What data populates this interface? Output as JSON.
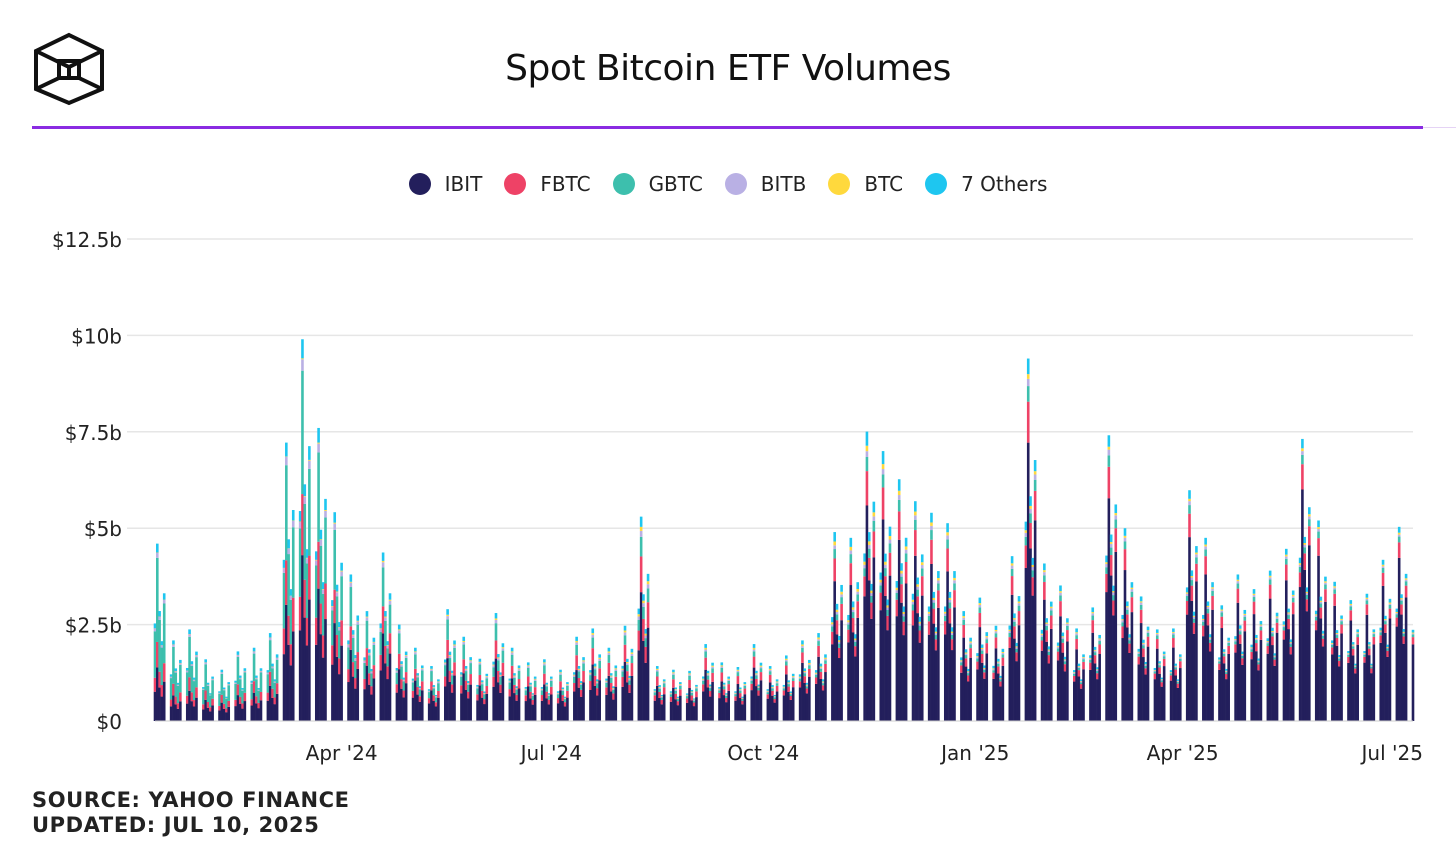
{
  "header": {
    "title": "Spot Bitcoin ETF Volumes"
  },
  "legend": [
    {
      "label": "IBIT",
      "color": "#231f5c"
    },
    {
      "label": "FBTC",
      "color": "#ee4266"
    },
    {
      "label": "GBTC",
      "color": "#3dbfad"
    },
    {
      "label": "BITB",
      "color": "#b9b0e4"
    },
    {
      "label": "BTC",
      "color": "#ffd93d"
    },
    {
      "label": "7 Others",
      "color": "#1ec6f0"
    }
  ],
  "footer": {
    "source": "SOURCE: YAHOO FINANCE",
    "updated": "UPDATED: JUL 10, 2025"
  },
  "chart_data": {
    "type": "bar",
    "stacked": true,
    "title": "Spot Bitcoin ETF Volumes",
    "xlabel": "",
    "ylabel": "",
    "ylim": [
      0,
      12.5
    ],
    "unit": "$b",
    "y_ticks": [
      "$0",
      "$2.5b",
      "$5b",
      "$7.5b",
      "$10b",
      "$12.5b"
    ],
    "y_tick_values": [
      0,
      2.5,
      5,
      7.5,
      10,
      12.5
    ],
    "x_ticks": [
      "Apr '24",
      "Jul '24",
      "Oct '24",
      "Jan '25",
      "Apr '25",
      "Jul '25"
    ],
    "x_tick_dates": [
      "2024-04-01",
      "2024-07-01",
      "2024-10-01",
      "2025-01-01",
      "2025-04-01",
      "2025-07-01"
    ],
    "x_range": [
      "2024-01-11",
      "2025-07-10"
    ],
    "grid": true,
    "legend_position": "top",
    "series_names": [
      "IBIT",
      "FBTC",
      "GBTC",
      "BITB",
      "BTC",
      "7 Others"
    ],
    "series_colors": [
      "#231f5c",
      "#ee4266",
      "#3dbfad",
      "#b9b0e4",
      "#ffd93d",
      "#1ec6f0"
    ],
    "weekly_total_volume": [
      [
        "2024-01-11",
        4.6
      ],
      [
        "2024-01-18",
        2.2
      ],
      [
        "2024-01-25",
        2.5
      ],
      [
        "2024-02-01",
        1.6
      ],
      [
        "2024-02-08",
        1.4
      ],
      [
        "2024-02-15",
        1.9
      ],
      [
        "2024-02-22",
        1.9
      ],
      [
        "2024-02-29",
        2.4
      ],
      [
        "2024-03-07",
        7.6
      ],
      [
        "2024-03-14",
        9.9
      ],
      [
        "2024-03-21",
        8.0
      ],
      [
        "2024-03-28",
        5.7
      ],
      [
        "2024-04-04",
        3.8
      ],
      [
        "2024-04-11",
        3.0
      ],
      [
        "2024-04-18",
        4.6
      ],
      [
        "2024-04-25",
        2.5
      ],
      [
        "2024-05-02",
        2.0
      ],
      [
        "2024-05-09",
        1.5
      ],
      [
        "2024-05-16",
        2.9
      ],
      [
        "2024-05-23",
        2.3
      ],
      [
        "2024-05-30",
        1.7
      ],
      [
        "2024-06-06",
        2.8
      ],
      [
        "2024-06-13",
        2.0
      ],
      [
        "2024-06-20",
        1.6
      ],
      [
        "2024-06-27",
        1.6
      ],
      [
        "2024-07-04",
        1.4
      ],
      [
        "2024-07-11",
        2.3
      ],
      [
        "2024-07-18",
        2.4
      ],
      [
        "2024-07-25",
        2.0
      ],
      [
        "2024-08-01",
        2.6
      ],
      [
        "2024-08-08",
        5.3
      ],
      [
        "2024-08-15",
        1.5
      ],
      [
        "2024-08-22",
        1.4
      ],
      [
        "2024-08-29",
        1.3
      ],
      [
        "2024-09-05",
        2.1
      ],
      [
        "2024-09-12",
        1.6
      ],
      [
        "2024-09-19",
        1.4
      ],
      [
        "2024-09-26",
        2.1
      ],
      [
        "2024-10-03",
        1.5
      ],
      [
        "2024-10-10",
        1.7
      ],
      [
        "2024-10-17",
        2.2
      ],
      [
        "2024-10-24",
        2.4
      ],
      [
        "2024-10-31",
        4.9
      ],
      [
        "2024-11-07",
        5.0
      ],
      [
        "2024-11-14",
        7.9
      ],
      [
        "2024-11-21",
        7.0
      ],
      [
        "2024-11-28",
        6.6
      ],
      [
        "2024-12-05",
        6.0
      ],
      [
        "2024-12-12",
        5.4
      ],
      [
        "2024-12-19",
        5.4
      ],
      [
        "2024-12-26",
        3.0
      ],
      [
        "2025-01-02",
        3.2
      ],
      [
        "2025-01-09",
        2.6
      ],
      [
        "2025-01-16",
        4.5
      ],
      [
        "2025-01-23",
        9.4
      ],
      [
        "2025-01-30",
        4.3
      ],
      [
        "2025-02-06",
        3.7
      ],
      [
        "2025-02-13",
        2.4
      ],
      [
        "2025-02-20",
        3.1
      ],
      [
        "2025-02-27",
        7.8
      ],
      [
        "2025-03-06",
        5.0
      ],
      [
        "2025-03-13",
        3.4
      ],
      [
        "2025-03-20",
        2.5
      ],
      [
        "2025-03-27",
        2.4
      ],
      [
        "2025-04-03",
        6.3
      ],
      [
        "2025-04-10",
        5.0
      ],
      [
        "2025-04-17",
        3.0
      ],
      [
        "2025-04-24",
        4.0
      ],
      [
        "2025-05-01",
        3.6
      ],
      [
        "2025-05-08",
        3.9
      ],
      [
        "2025-05-15",
        4.7
      ],
      [
        "2025-05-22",
        7.7
      ],
      [
        "2025-05-29",
        5.2
      ],
      [
        "2025-06-05",
        3.8
      ],
      [
        "2025-06-12",
        3.3
      ],
      [
        "2025-06-19",
        3.3
      ],
      [
        "2025-06-26",
        4.4
      ],
      [
        "2025-07-03",
        5.3
      ],
      [
        "2025-07-10",
        4.3
      ]
    ],
    "series_share": {
      "2024-01": [
        0.28,
        0.14,
        0.5,
        0.03,
        0.0,
        0.05
      ],
      "2024-03": [
        0.4,
        0.16,
        0.36,
        0.03,
        0.0,
        0.05
      ],
      "2024-05": [
        0.55,
        0.16,
        0.2,
        0.03,
        0.01,
        0.05
      ],
      "2024-08": [
        0.62,
        0.18,
        0.1,
        0.03,
        0.02,
        0.05
      ],
      "2024-11": [
        0.74,
        0.12,
        0.05,
        0.02,
        0.02,
        0.05
      ],
      "2025-03": [
        0.78,
        0.11,
        0.04,
        0.02,
        0.01,
        0.04
      ],
      "2025-07": [
        0.84,
        0.08,
        0.03,
        0.01,
        0.01,
        0.03
      ]
    }
  }
}
